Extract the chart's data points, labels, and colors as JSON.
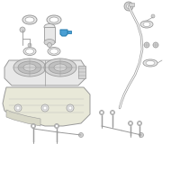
{
  "bg_color": "#ffffff",
  "line_color": "#999999",
  "dark_line": "#666666",
  "light_line": "#bbbbbb",
  "blue1": "#4a9fd4",
  "blue2": "#2a7fb0",
  "fill_light": "#e8e8e8",
  "fill_mid": "#d4d4d4",
  "fill_dark": "#c0c0c0"
}
